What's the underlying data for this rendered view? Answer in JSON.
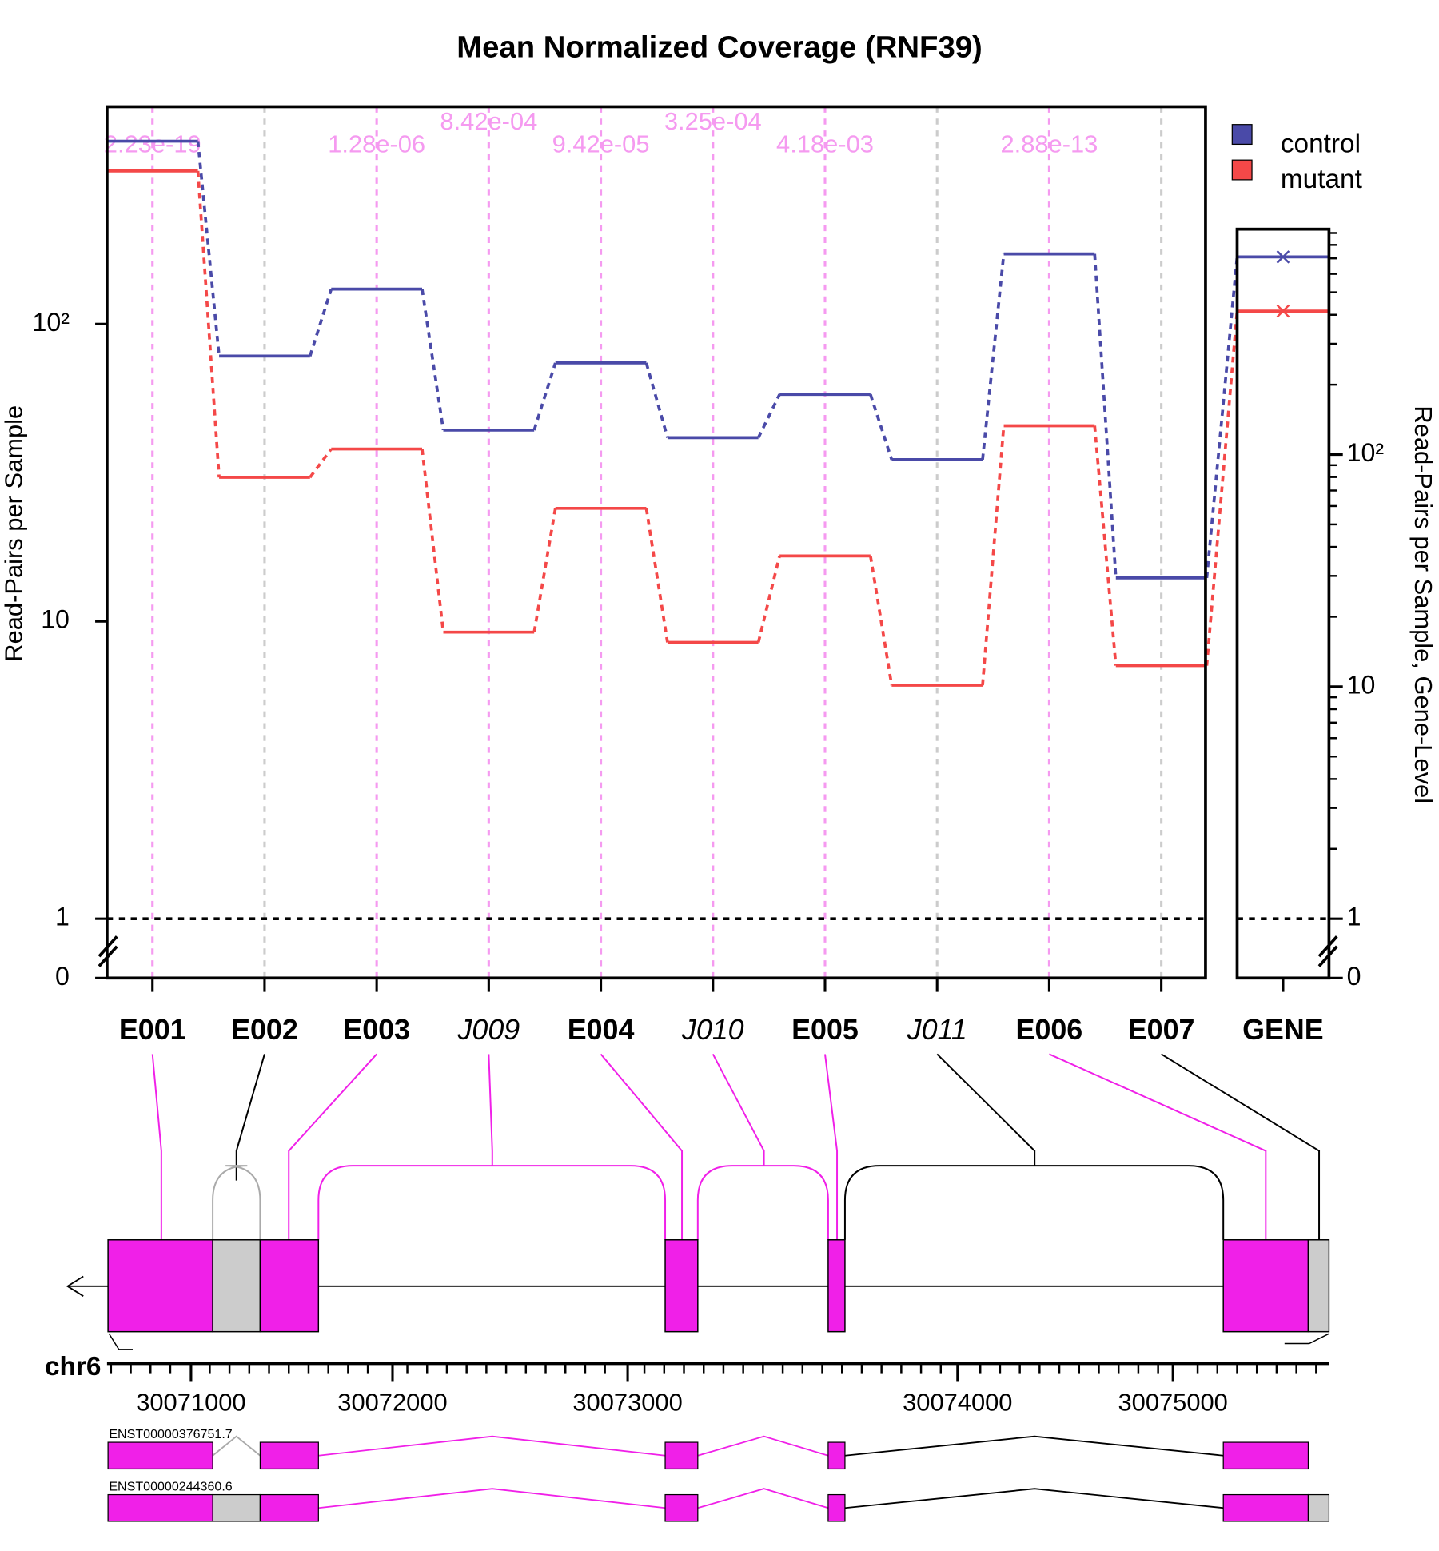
{
  "chart_data": {
    "type": "line",
    "title": "Mean Normalized Coverage (RNF39)",
    "y_label": "Read-Pairs per Sample",
    "y2_label": "Read-Pairs per Sample, Gene-Level",
    "log_scale": true,
    "axis_break": true,
    "categories": [
      "E001",
      "E002",
      "E003",
      "J009",
      "E004",
      "J010",
      "E005",
      "J011",
      "E006",
      "E007"
    ],
    "junction": [
      false,
      false,
      false,
      true,
      false,
      true,
      false,
      true,
      false,
      false
    ],
    "significant": [
      true,
      false,
      true,
      true,
      true,
      true,
      true,
      false,
      true,
      false
    ],
    "pvalues": [
      "2.23e-19",
      null,
      "1.28e-06",
      "8.42e-04",
      "9.42e-05",
      "3.25e-04",
      "4.18e-03",
      null,
      "2.88e-13",
      null
    ],
    "pvalue_color": "#f59af0",
    "gene_category": "GENE",
    "series": [
      {
        "name": "control",
        "color": "#4a4aa8",
        "values": [
          412,
          78,
          131,
          44,
          74,
          41.5,
          58,
          35,
          172,
          14
        ],
        "gene_value": 710
      },
      {
        "name": "mutant",
        "color": "#f44848",
        "values": [
          327,
          30.5,
          38,
          9.2,
          24,
          8.5,
          16.6,
          6.1,
          45.5,
          7.1
        ],
        "gene_value": 415
      }
    ],
    "ylim": [
      1,
      538
    ],
    "yticks": [
      0,
      1,
      10,
      {
        "value": 100,
        "label": "10²"
      }
    ],
    "y2lim": [
      1,
      935
    ],
    "y2ticks": [
      0,
      1,
      10,
      {
        "value": 100,
        "label": "10²"
      }
    ],
    "genome": {
      "chromosome": "chr6",
      "ticks": [
        30071000,
        30072000,
        30073000,
        30074000,
        30075000
      ],
      "transcripts": [
        "ENST00000376751.7",
        "ENST00000244360.6"
      ]
    }
  }
}
